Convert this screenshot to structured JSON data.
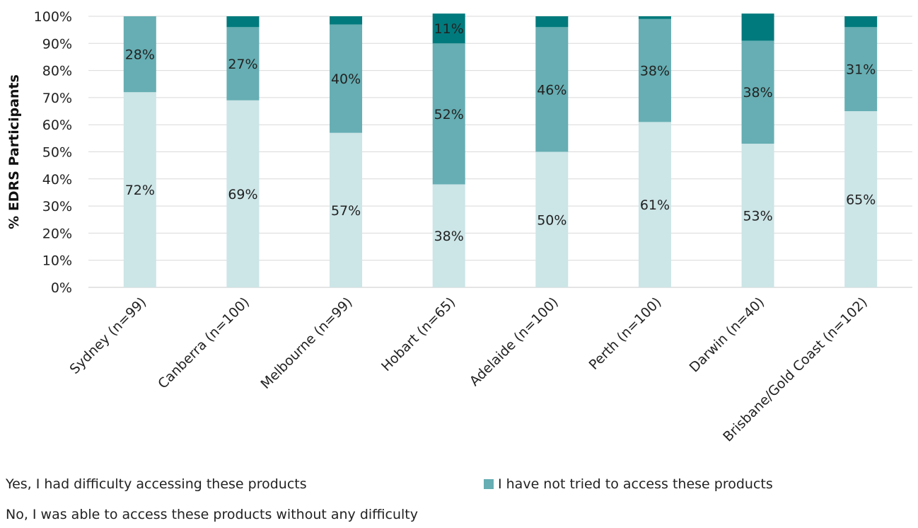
{
  "chart_data": {
    "type": "bar",
    "stacked": true,
    "ylabel": "% EDRS Participants",
    "ylim": [
      0,
      100
    ],
    "yticks": [
      "0%",
      "10%",
      "20%",
      "30%",
      "40%",
      "50%",
      "60%",
      "70%",
      "80%",
      "90%",
      "100%"
    ],
    "grid": true,
    "legend_position": "bottom",
    "categories": [
      "Sydney (n=99)",
      "Canberra (n=100)",
      "Melbourne (n=99)",
      "Hobart (n=65)",
      "Adelaide (n=100)",
      "Perth (n=100)",
      "Darwin (n=40)",
      "Brisbane/Gold Coast (n=102)"
    ],
    "series": [
      {
        "name": "No, I was able to access these products without any difficulty",
        "color": "#cce5e7",
        "values": [
          72,
          69,
          57,
          38,
          50,
          61,
          53,
          65
        ],
        "labels": [
          "72%",
          "69%",
          "57%",
          "38%",
          "50%",
          "61%",
          "53%",
          "65%"
        ]
      },
      {
        "name": "I have not tried to access these products",
        "color": "#66aeb3",
        "values": [
          28,
          27,
          40,
          52,
          46,
          38,
          38,
          31
        ],
        "labels": [
          "28%",
          "27%",
          "40%",
          "52%",
          "46%",
          "38%",
          "38%",
          "31%"
        ]
      },
      {
        "name": "Yes, I had difficulty accessing these products",
        "color": "#007a7d",
        "values": [
          0,
          4,
          3,
          11,
          4,
          1,
          10,
          4
        ],
        "labels": [
          "",
          "",
          "",
          "11%",
          "",
          "",
          "",
          ""
        ]
      }
    ]
  },
  "legend": {
    "yes_label": "Yes, I had difficulty accessing these products",
    "not_tried_label": "I have not tried to access these products",
    "no_label": "No, I was able to access these products without any difficulty",
    "not_tried_color": "#66aeb3"
  }
}
